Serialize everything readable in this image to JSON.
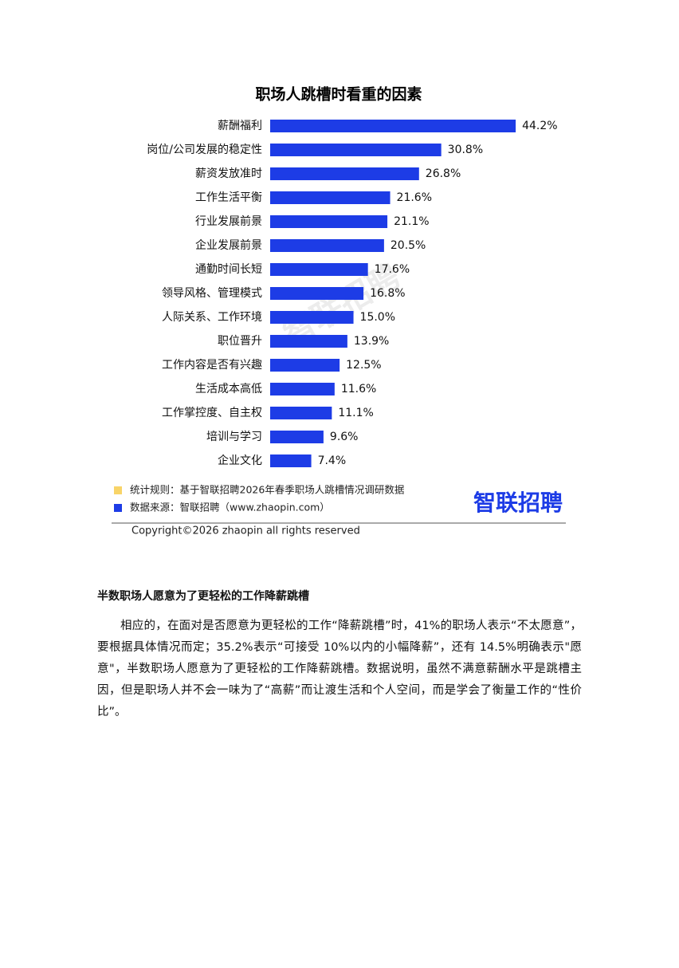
{
  "chart_data": {
    "type": "bar",
    "orientation": "horizontal",
    "title": "职场人跳槽时看重的因素",
    "categories": [
      "薪酬福利",
      "岗位/公司发展的稳定性",
      "薪资发放准时",
      "工作生活平衡",
      "行业发展前景",
      "企业发展前景",
      "通勤时间长短",
      "领导风格、管理模式",
      "人际关系、工作环境",
      "职位晋升",
      "工作内容是否有兴趣",
      "生活成本高低",
      "工作掌控度、自主权",
      "培训与学习",
      "企业文化"
    ],
    "values": [
      44.2,
      30.8,
      26.8,
      21.6,
      21.1,
      20.5,
      17.6,
      16.8,
      15.0,
      13.9,
      12.5,
      11.6,
      11.1,
      9.6,
      7.4
    ],
    "value_labels": [
      "44.2%",
      "30.8%",
      "26.8%",
      "21.6%",
      "21.1%",
      "20.5%",
      "17.6%",
      "16.8%",
      "15.0%",
      "13.9%",
      "12.5%",
      "11.6%",
      "11.1%",
      "9.6%",
      "7.4%"
    ],
    "color": "#1d3ce6"
  },
  "notes": [
    {
      "text": "统计规则：基于智联招聘2026年春季职场人跳槽情况调研数据",
      "color": "#f8d468"
    },
    {
      "text": "数据来源：智联招聘（www.zhaopin.com）",
      "color": "#1d3ce6"
    }
  ],
  "logo": "智联招聘",
  "watermark": "智联招聘",
  "copyright": "Copyright©2026 zhaopin all rights reserved",
  "section": {
    "heading": "半数职场人愿意为了更轻松的工作降薪跳槽",
    "paragraph": "相应的，在面对是否愿意为更轻松的工作“降薪跳槽”时，41%的职场人表示“不太愿意”，要根据具体情况而定；35.2%表示“可接受 10%以内的小幅降薪”，还有 14.5%明确表示\"愿意\"，半数职场人愿意为了更轻松的工作降薪跳槽。数据说明，虽然不满意薪酬水平是跳槽主因，但是职场人并不会一味为了“高薪”而让渡生活和个人空间，而是学会了衡量工作的“性价比”。"
  }
}
